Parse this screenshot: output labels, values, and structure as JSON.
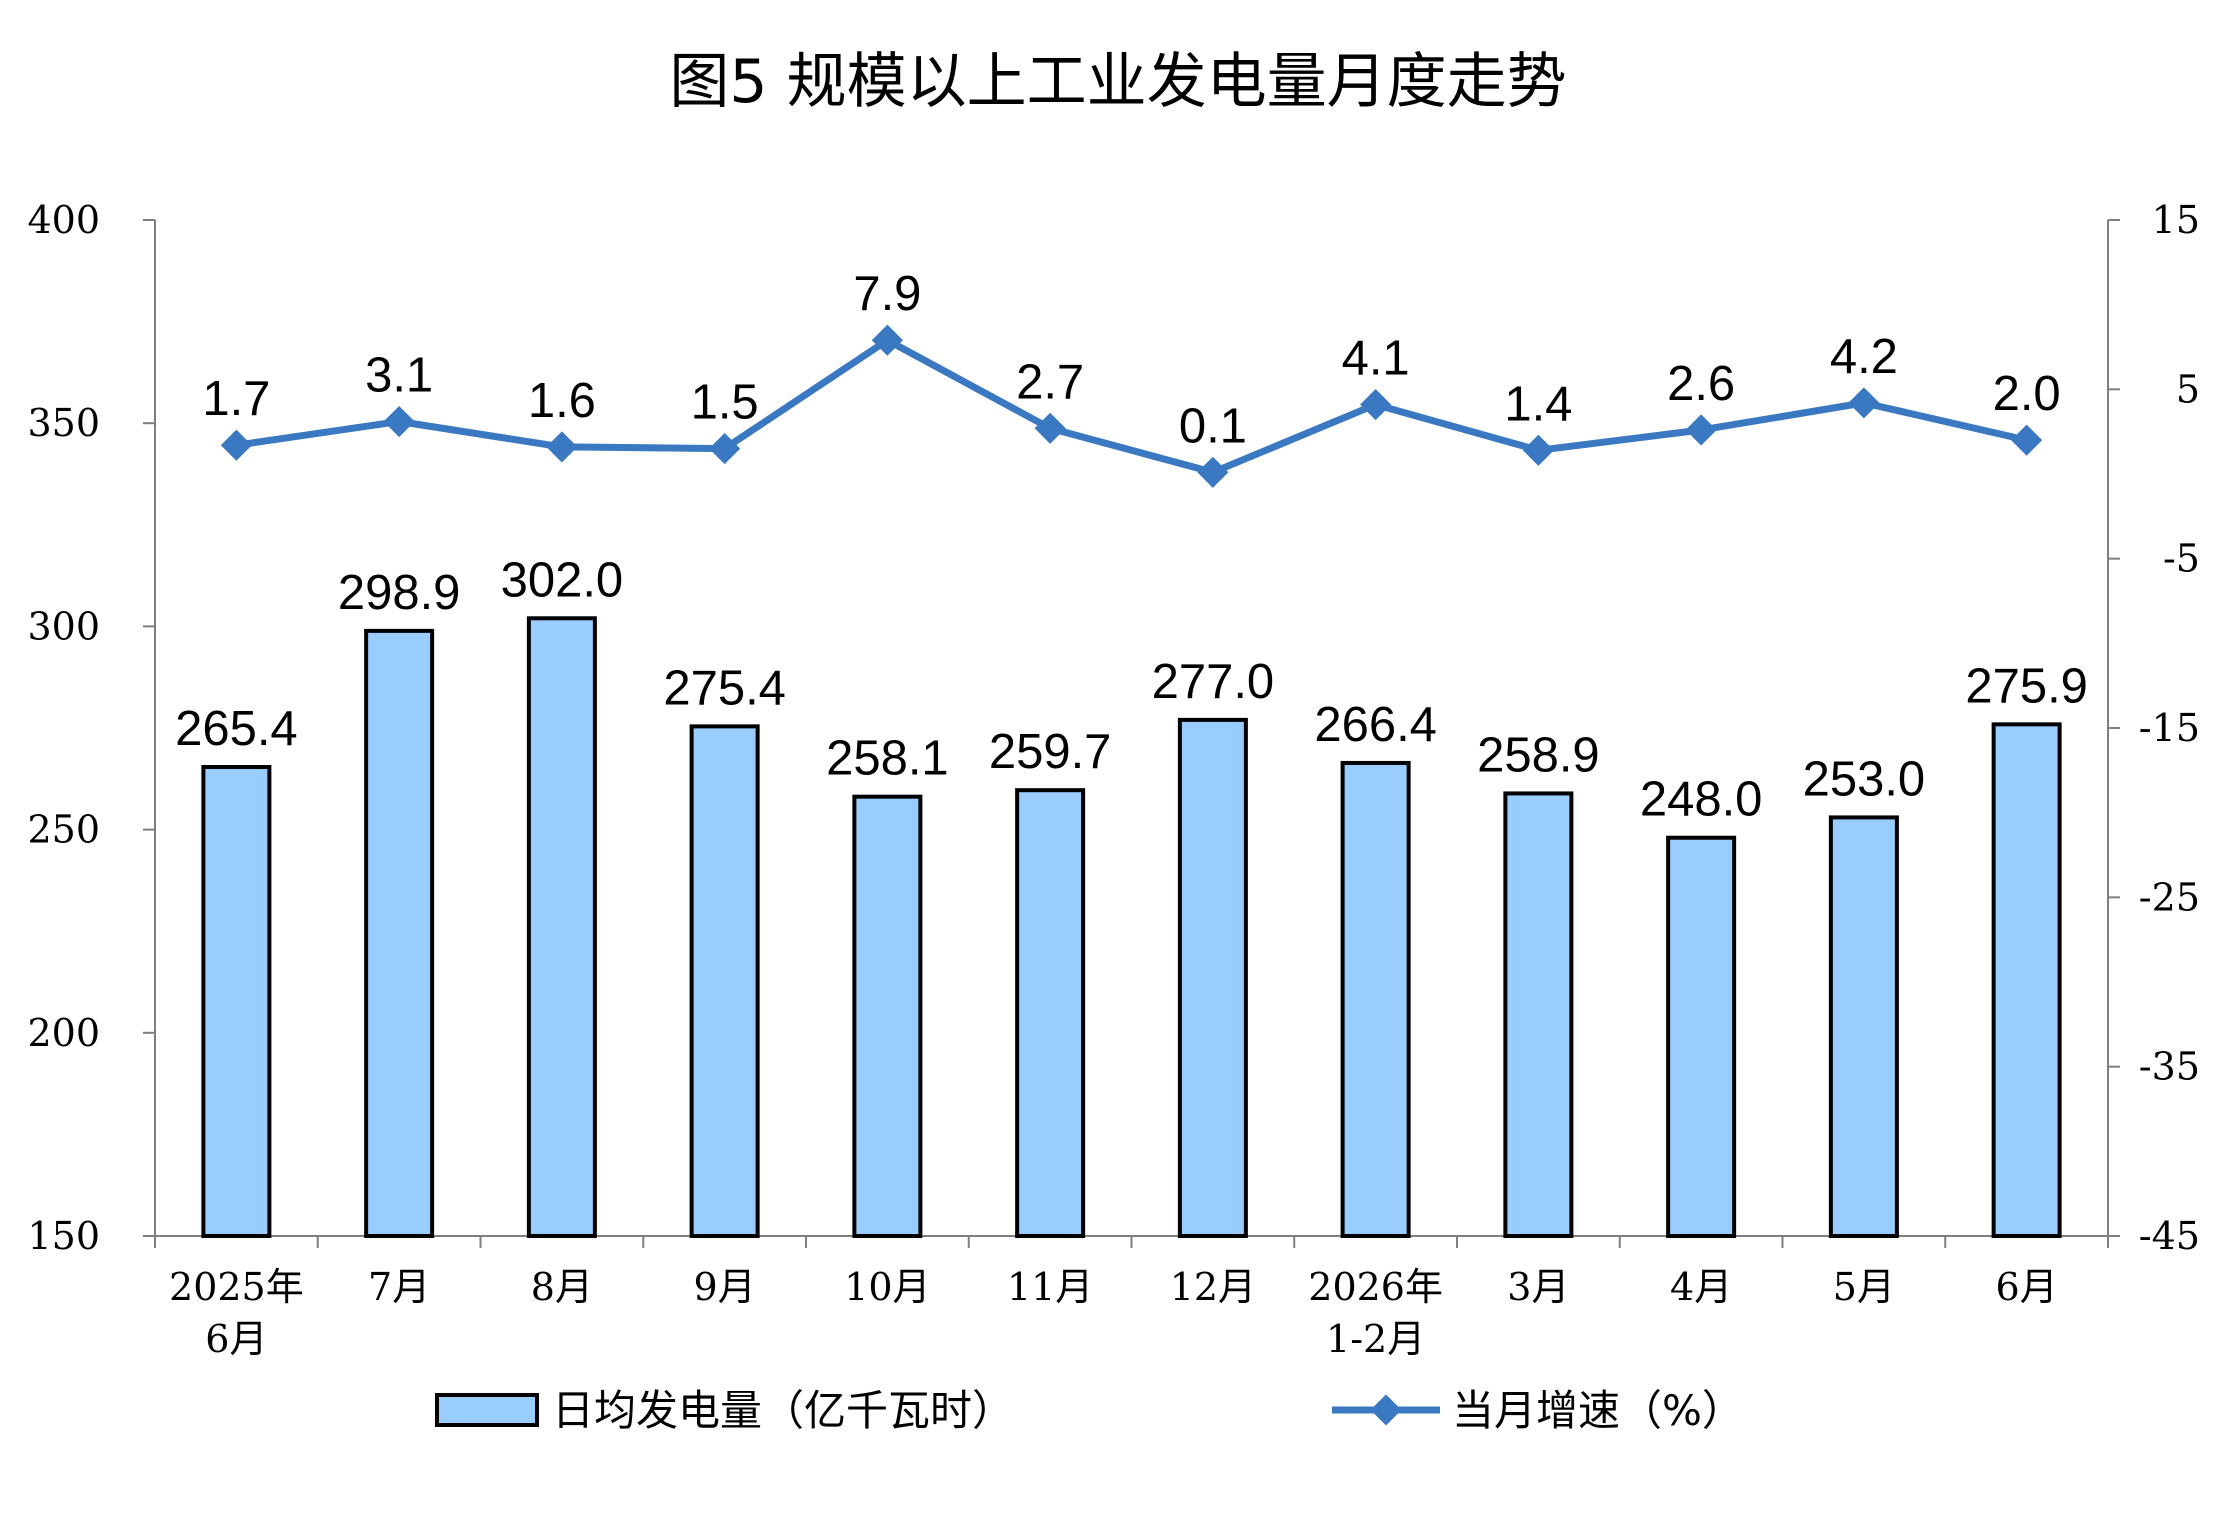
{
  "chart_data": {
    "type": "bar",
    "title": "图5  规模以上工业发电量月度走势",
    "categories": [
      [
        "2025年",
        "6月"
      ],
      [
        "7月"
      ],
      [
        "8月"
      ],
      [
        "9月"
      ],
      [
        "10月"
      ],
      [
        "11月"
      ],
      [
        "12月"
      ],
      [
        "2026年",
        "1-2月"
      ],
      [
        "3月"
      ],
      [
        "4月"
      ],
      [
        "5月"
      ],
      [
        "6月"
      ]
    ],
    "series": [
      {
        "name": "日均发电量（亿千瓦时）",
        "type": "bar",
        "axis": "left",
        "values": [
          265.4,
          298.9,
          302.0,
          275.4,
          258.1,
          259.7,
          277.0,
          266.4,
          258.9,
          248.0,
          253.0,
          275.9
        ],
        "labels": [
          "265.4",
          "298.9",
          "302.0",
          "275.4",
          "258.1",
          "259.7",
          "277.0",
          "266.4",
          "258.9",
          "248.0",
          "253.0",
          "275.9"
        ],
        "color": "#99ccff"
      },
      {
        "name": "当月增速（%）",
        "type": "line",
        "axis": "right",
        "values": [
          1.7,
          3.1,
          1.6,
          1.5,
          7.9,
          2.7,
          0.1,
          4.1,
          1.4,
          2.6,
          4.2,
          2.0
        ],
        "labels": [
          "1.7",
          "3.1",
          "1.6",
          "1.5",
          "7.9",
          "2.7",
          "0.1",
          "4.1",
          "1.4",
          "2.6",
          "4.2",
          "2.0"
        ],
        "color": "#3a78c2"
      }
    ],
    "y_left": {
      "ylim": [
        150,
        400
      ],
      "ticks": [
        "150",
        "200",
        "250",
        "300",
        "350",
        "400"
      ]
    },
    "y_right": {
      "ylim": [
        -45,
        15
      ],
      "ticks": [
        "-45",
        "-35",
        "-25",
        "-15",
        "-5",
        "5",
        "15"
      ]
    },
    "grid": false,
    "legend": "bottom"
  }
}
